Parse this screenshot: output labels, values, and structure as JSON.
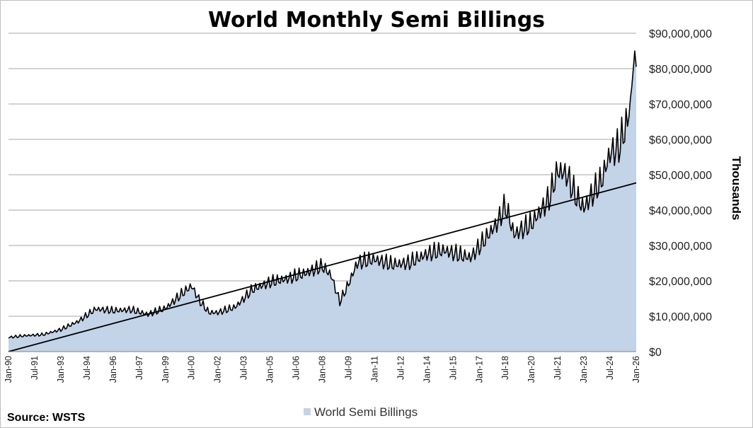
{
  "chart_data": {
    "type": "area",
    "title": "World Monthly Semi Billings",
    "ylabel": "Thousands",
    "xlabel": "",
    "ylim": [
      0,
      90000000
    ],
    "y_ticks": [
      {
        "value": 0,
        "label": "$0"
      },
      {
        "value": 10000000,
        "label": "$10,000,000"
      },
      {
        "value": 20000000,
        "label": "$20,000,000"
      },
      {
        "value": 30000000,
        "label": "$30,000,000"
      },
      {
        "value": 40000000,
        "label": "$40,000,000"
      },
      {
        "value": 50000000,
        "label": "$50,000,000"
      },
      {
        "value": 60000000,
        "label": "$60,000,000"
      },
      {
        "value": 70000000,
        "label": "$70,000,000"
      },
      {
        "value": 80000000,
        "label": "$80,000,000"
      },
      {
        "value": 90000000,
        "label": "$90,000,000"
      }
    ],
    "x_ticks": [
      "Jan-90",
      "Jul-91",
      "Jan-93",
      "Jul-94",
      "Jan-96",
      "Jul-97",
      "Jan-99",
      "Jul-00",
      "Jan-02",
      "Jul-03",
      "Jan-05",
      "Jul-06",
      "Jan-08",
      "Jul-09",
      "Jan-11",
      "Jul-12",
      "Jan-14",
      "Jul-15",
      "Jan-17",
      "Jul-18",
      "Jan-20",
      "Jul-21",
      "Jan-23",
      "Jul-24",
      "Jan-26"
    ],
    "x_start": "Jan-90",
    "x_end": "Jan-26",
    "grid": true,
    "legend_position": "bottom-center",
    "series": [
      {
        "name": "World Semi Billings",
        "kind": "area",
        "color": "#c3d3e8",
        "line_color": "#000000",
        "x_unit": "months since Jan-90",
        "seasonal_amplitude": 0.08,
        "anchors": [
          [
            0,
            4000000
          ],
          [
            12,
            4500000
          ],
          [
            24,
            4800000
          ],
          [
            36,
            6200000
          ],
          [
            48,
            8500000
          ],
          [
            60,
            12000000
          ],
          [
            72,
            11500000
          ],
          [
            84,
            11800000
          ],
          [
            96,
            10500000
          ],
          [
            108,
            12200000
          ],
          [
            120,
            16500000
          ],
          [
            126,
            18500000
          ],
          [
            132,
            14000000
          ],
          [
            138,
            11000000
          ],
          [
            144,
            11000000
          ],
          [
            156,
            12500000
          ],
          [
            168,
            17500000
          ],
          [
            180,
            19500000
          ],
          [
            192,
            20500000
          ],
          [
            204,
            22000000
          ],
          [
            216,
            24000000
          ],
          [
            222,
            21500000
          ],
          [
            228,
            14000000
          ],
          [
            234,
            19000000
          ],
          [
            240,
            25000000
          ],
          [
            252,
            26000000
          ],
          [
            264,
            24500000
          ],
          [
            276,
            25000000
          ],
          [
            288,
            27500000
          ],
          [
            300,
            28500000
          ],
          [
            312,
            27000000
          ],
          [
            318,
            26500000
          ],
          [
            324,
            29500000
          ],
          [
            336,
            36000000
          ],
          [
            342,
            41000000
          ],
          [
            348,
            33000000
          ],
          [
            360,
            36000000
          ],
          [
            372,
            43000000
          ],
          [
            378,
            51000000
          ],
          [
            384,
            50000000
          ],
          [
            390,
            44000000
          ],
          [
            396,
            40500000
          ],
          [
            402,
            44500000
          ],
          [
            408,
            48000000
          ],
          [
            414,
            56000000
          ],
          [
            420,
            57500000
          ],
          [
            426,
            65000000
          ],
          [
            429,
            75000000
          ],
          [
            431,
            85000000
          ],
          [
            432,
            80500000
          ]
        ]
      },
      {
        "name": "Trend",
        "kind": "line",
        "color": "#000000",
        "points": [
          [
            0,
            -500000
          ],
          [
            432,
            47700000
          ]
        ]
      }
    ]
  },
  "legend": {
    "label": "World Semi Billings",
    "swatch_color": "#c3d3e8"
  },
  "source": "Source: WSTS"
}
